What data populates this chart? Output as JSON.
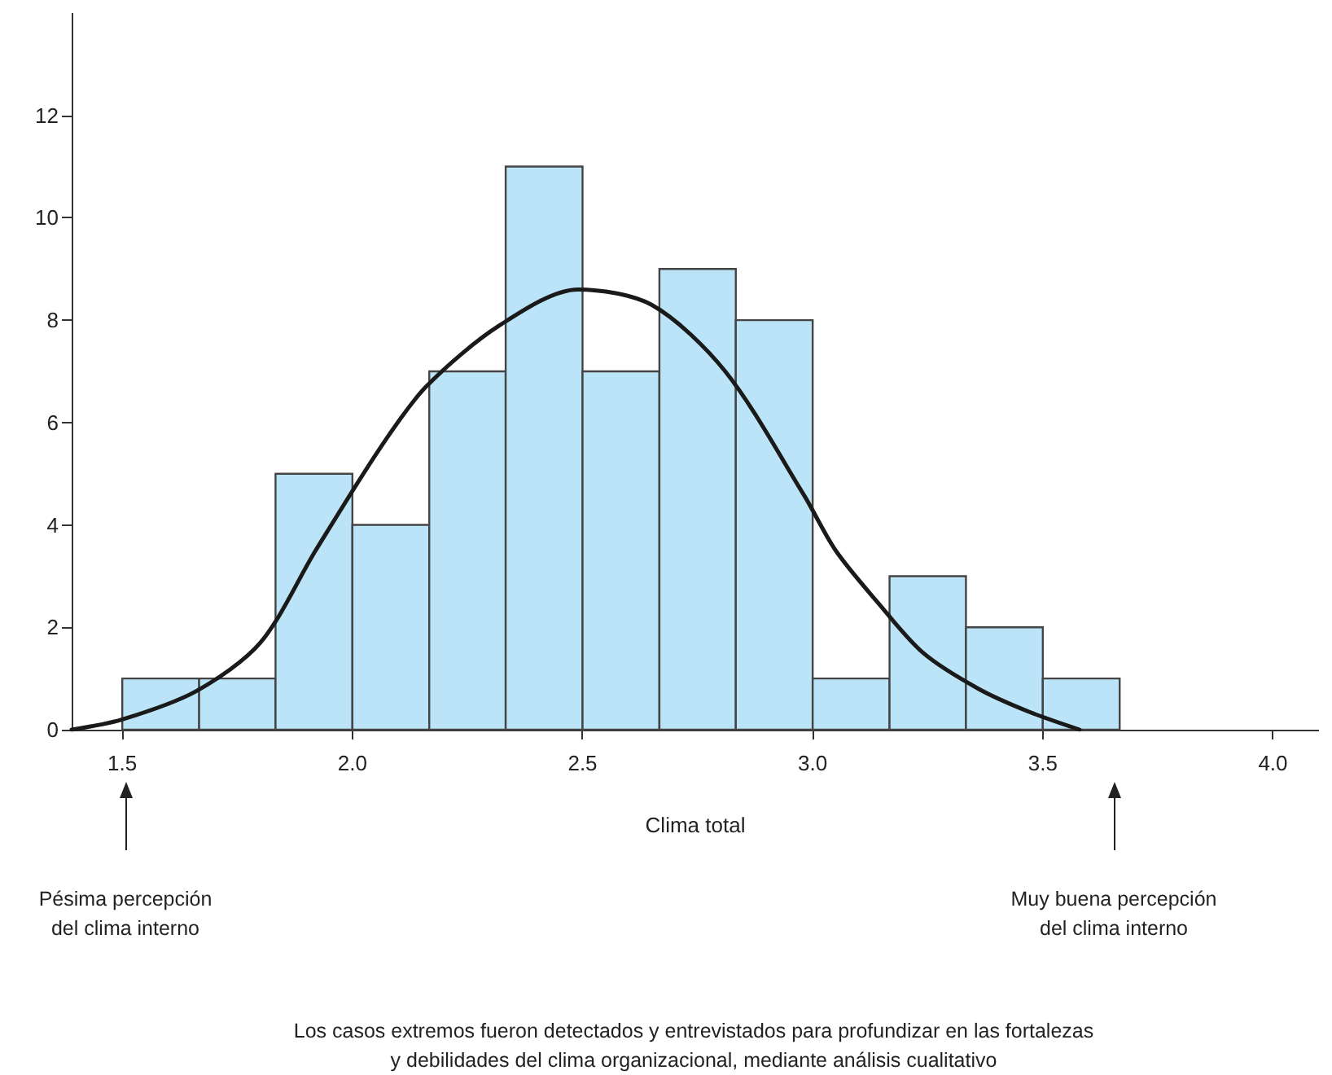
{
  "chart_data": {
    "type": "histogram",
    "xlabel": "Clima total",
    "bins": [
      1.5,
      1.667,
      1.833,
      2.0,
      2.167,
      2.333,
      2.5,
      2.667,
      2.833,
      3.0,
      3.167,
      3.333,
      3.5,
      3.667
    ],
    "values": [
      1,
      1,
      5,
      4,
      7,
      11,
      7,
      9,
      8,
      1,
      3,
      2,
      1
    ],
    "color": "#bce4f8",
    "series": [
      {
        "type": "line",
        "color": "#1a1a1a",
        "x": [
          1.39,
          1.5,
          1.66,
          1.8,
          1.92,
          2.06,
          2.16,
          2.32,
          2.49,
          2.65,
          2.81,
          2.98,
          3.05,
          3.14,
          3.24,
          3.36,
          3.47,
          3.58
        ],
        "values": [
          0,
          0.2,
          0.75,
          1.7,
          3.5,
          5.5,
          6.7,
          7.9,
          8.6,
          8.3,
          7.0,
          4.6,
          3.5,
          2.5,
          1.5,
          0.8,
          0.35,
          0
        ]
      }
    ],
    "xlim": [
      1.39,
      4.1
    ],
    "xticks": [
      1.5,
      {
        "value": 2.0,
        "label": "2.0"
      },
      2.5,
      {
        "value": 3.0,
        "label": "3.0"
      },
      3.5,
      {
        "value": 4.0,
        "label": "4.0"
      }
    ],
    "ylim": [
      0,
      14
    ],
    "yticks": [
      0,
      2,
      4,
      6,
      8,
      10,
      12
    ],
    "grid": false,
    "marker": "none",
    "line_style": "solid",
    "annotations": [
      "Pésima percepción\ndel clima interno",
      "Muy buena percepción\ndel clima interno",
      "Los casos extremos fueron detectados y entrevistados para profundizar en las fortalezas\ny debilidades del clima organizacional, mediante análisis cualitativo"
    ]
  }
}
